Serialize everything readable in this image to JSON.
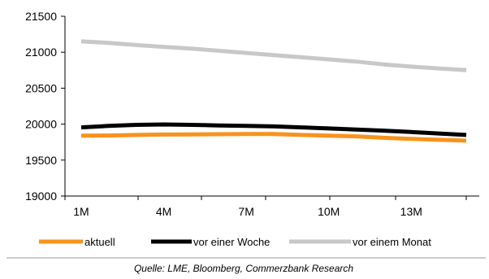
{
  "chart_data": {
    "type": "line",
    "x": [
      1,
      2,
      3,
      4,
      5,
      6,
      7,
      8,
      9,
      10,
      11,
      12,
      13,
      14,
      15
    ],
    "x_tick_labels": [
      "1M",
      "4M",
      "7M",
      "10M",
      "13M"
    ],
    "x_tick_positions": [
      1,
      4,
      7,
      10,
      13
    ],
    "y_tick_labels": [
      "19000",
      "19500",
      "20000",
      "20500",
      "21000",
      "21500"
    ],
    "ylim": [
      19000,
      21500
    ],
    "xlim": [
      1,
      15
    ],
    "grid": false,
    "legend_position": "bottom",
    "series": [
      {
        "name": "aktuell",
        "color": "#F7931E",
        "values": [
          19840,
          19842,
          19850,
          19855,
          19858,
          19860,
          19862,
          19863,
          19850,
          19840,
          19830,
          19810,
          19795,
          19782,
          19770
        ]
      },
      {
        "name": "vor einer Woche",
        "color": "#000000",
        "values": [
          19955,
          19975,
          19990,
          19995,
          19990,
          19982,
          19975,
          19968,
          19955,
          19940,
          19925,
          19910,
          19890,
          19870,
          19850
        ]
      },
      {
        "name": "vor einem Monat",
        "color": "#C8C8C8",
        "values": [
          21150,
          21130,
          21100,
          21075,
          21050,
          21020,
          20990,
          20960,
          20930,
          20900,
          20870,
          20830,
          20800,
          20775,
          20750
        ]
      }
    ]
  },
  "source": "Quelle: LME, Bloomberg, Commerzbank Research"
}
